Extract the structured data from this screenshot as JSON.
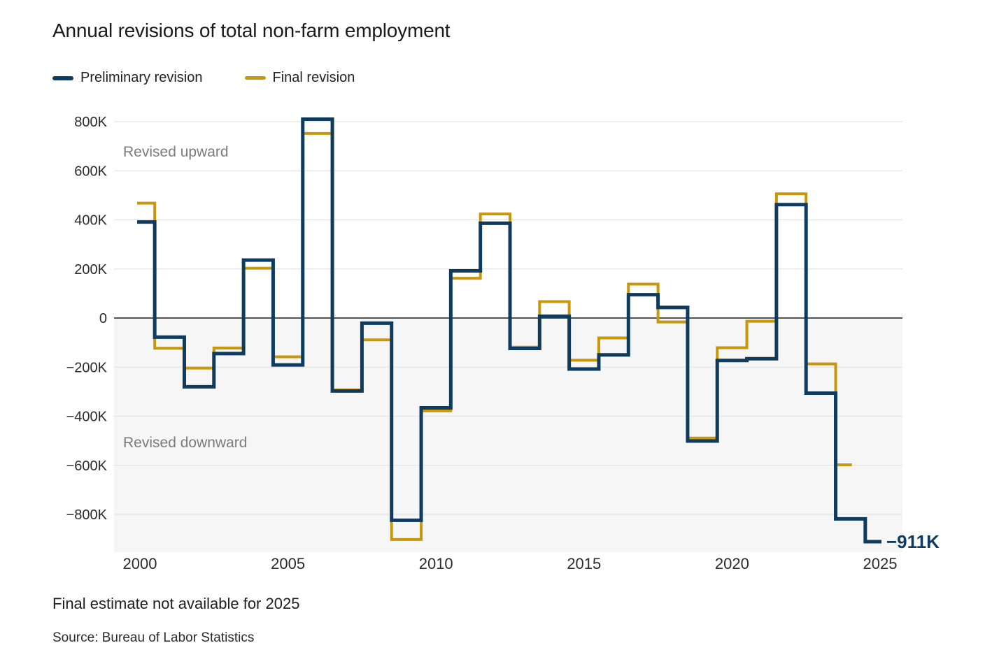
{
  "header": {
    "title": "Annual revisions of total non-farm employment"
  },
  "legend": [
    {
      "label": "Preliminary revision",
      "color": "#0F3B5F"
    },
    {
      "label": "Final revision",
      "color": "#C9970C"
    }
  ],
  "chart_data": {
    "type": "line",
    "subtype": "step",
    "unit": "thousands of jobs (K)",
    "x": [
      2000,
      2001,
      2002,
      2003,
      2004,
      2005,
      2006,
      2007,
      2008,
      2009,
      2010,
      2011,
      2012,
      2013,
      2014,
      2015,
      2016,
      2017,
      2018,
      2019,
      2020,
      2021,
      2022,
      2023,
      2024,
      2025
    ],
    "series": [
      {
        "name": "Preliminary revision",
        "color": "#0F3B5F",
        "values": [
          391,
          -78,
          -280,
          -145,
          236,
          -191,
          810,
          -297,
          -21,
          -824,
          -366,
          192,
          386,
          -124,
          7,
          -208,
          -150,
          95,
          43,
          -501,
          -173,
          -166,
          462,
          -306,
          -818,
          -911
        ]
      },
      {
        "name": "Final revision",
        "color": "#C9970C",
        "values": [
          468,
          -123,
          -204,
          -122,
          203,
          -158,
          752,
          -293,
          -89,
          -902,
          -378,
          162,
          424,
          -119,
          67,
          -172,
          -81,
          138,
          -16,
          -489,
          -121,
          -13,
          506,
          -187,
          -598,
          null
        ]
      }
    ],
    "y_ticks": [
      {
        "value": 800,
        "label": "800K"
      },
      {
        "value": 600,
        "label": "600K"
      },
      {
        "value": 400,
        "label": "400K"
      },
      {
        "value": 200,
        "label": "200K"
      },
      {
        "value": 0,
        "label": "0"
      },
      {
        "value": -200,
        "label": "−200K"
      },
      {
        "value": -400,
        "label": "−400K"
      },
      {
        "value": -600,
        "label": "−600K"
      },
      {
        "value": -800,
        "label": "−800K"
      }
    ],
    "x_ticks": [
      {
        "value": 2000,
        "label": "2000"
      },
      {
        "value": 2005,
        "label": "2005"
      },
      {
        "value": 2010,
        "label": "2010"
      },
      {
        "value": 2015,
        "label": "2015"
      },
      {
        "value": 2020,
        "label": "2020"
      },
      {
        "value": 2025,
        "label": "2025"
      }
    ],
    "ylim": [
      -955,
      850
    ],
    "grid": true,
    "legend_position": "top-left",
    "annotations": [
      {
        "text": "Revised upward",
        "region": "above-zero"
      },
      {
        "text": "Revised downward",
        "region": "below-zero"
      }
    ],
    "end_label": {
      "text": "−911K",
      "series": "Preliminary revision",
      "year": 2025,
      "value": -911
    },
    "colors": {
      "grid": "#E4E4E4",
      "zero_line": "#3B3B3B",
      "below_zero_band": "#F6F6F6",
      "annotation": "#7C7C7C",
      "axis_text": "#2B2B2B"
    }
  },
  "footer": {
    "note": "Final estimate not available for 2025",
    "source": "Source: Bureau of Labor Statistics"
  }
}
